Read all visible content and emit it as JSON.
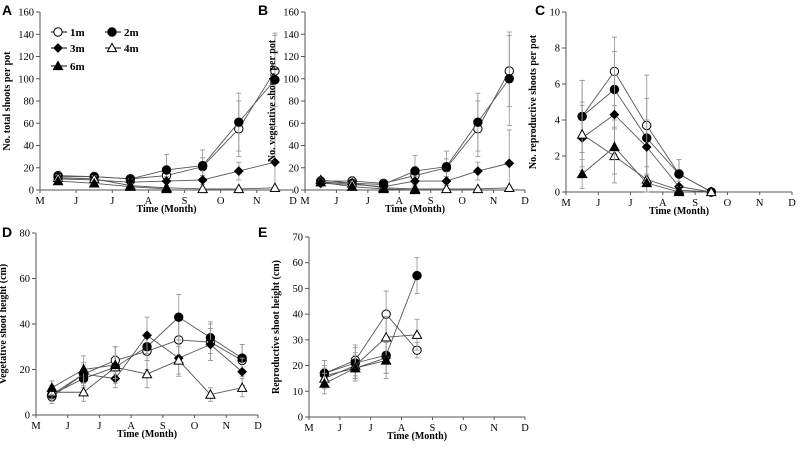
{
  "legend": {
    "entries": [
      {
        "label": "1m",
        "marker": "circle-open"
      },
      {
        "label": "2m",
        "marker": "circle-filled"
      },
      {
        "label": "3m",
        "marker": "diamond-filled"
      },
      {
        "label": "4m",
        "marker": "triangle-open"
      },
      {
        "label": "6m",
        "marker": "triangle-filled"
      }
    ]
  },
  "chart_data": [
    {
      "id": "A",
      "type": "line",
      "letter": "A",
      "ylabel": "No. total shoots per pot",
      "xlabel": "Time (Month)",
      "ylim": [
        0,
        160
      ],
      "yticks": [
        0,
        20,
        40,
        60,
        80,
        100,
        120,
        140,
        160
      ],
      "categories": [
        "M",
        "J",
        "J",
        "A",
        "S",
        "O",
        "N",
        "D"
      ],
      "series": [
        {
          "name": "1m",
          "x": [
            0.5,
            1.5,
            2.5,
            3.5,
            4.5,
            5.5,
            6.5
          ],
          "values": [
            13,
            12,
            10,
            13,
            21,
            55,
            107
          ],
          "err": [
            3,
            4,
            3,
            6,
            8,
            25,
            32
          ]
        },
        {
          "name": "2m",
          "x": [
            0.5,
            1.5,
            2.5,
            3.5,
            4.5,
            5.5,
            6.5
          ],
          "values": [
            12,
            12,
            10,
            18,
            22,
            61,
            99
          ],
          "err": [
            3,
            4,
            3,
            14,
            14,
            26,
            42
          ]
        },
        {
          "name": "3m",
          "x": [
            0.5,
            1.5,
            2.5,
            3.5,
            4.5,
            5.5,
            6.5
          ],
          "values": [
            10,
            9,
            7,
            8,
            9,
            17,
            25
          ],
          "err": [
            3,
            3,
            3,
            4,
            4,
            8,
            25
          ]
        },
        {
          "name": "4m",
          "x": [
            0.5,
            1.5,
            2.5,
            3.5,
            4.5,
            5.5,
            6.5
          ],
          "values": [
            11,
            10,
            4,
            2,
            1,
            1,
            2
          ],
          "err": [
            3,
            3,
            2,
            1,
            1,
            1,
            1
          ]
        },
        {
          "name": "6m",
          "x": [
            0.5,
            1.5,
            2.5,
            3.5
          ],
          "values": [
            8,
            6,
            3,
            1
          ],
          "err": [
            2,
            2,
            1,
            1
          ]
        }
      ]
    },
    {
      "id": "B",
      "type": "line",
      "letter": "B",
      "ylabel": "No. vegetative shoots per pot",
      "xlabel": "Time (Month)",
      "ylim": [
        0,
        160
      ],
      "yticks": [
        0,
        20,
        40,
        60,
        80,
        100,
        120,
        140,
        160
      ],
      "categories": [
        "M",
        "J",
        "J",
        "A",
        "S",
        "O",
        "N",
        "D"
      ],
      "series": [
        {
          "name": "1m",
          "x": [
            0.5,
            1.5,
            2.5,
            3.5,
            4.5,
            5.5,
            6.5
          ],
          "values": [
            8,
            8,
            6,
            13,
            20,
            55,
            107
          ],
          "err": [
            3,
            4,
            3,
            8,
            8,
            25,
            32
          ]
        },
        {
          "name": "2m",
          "x": [
            0.5,
            1.5,
            2.5,
            3.5,
            4.5,
            5.5,
            6.5
          ],
          "values": [
            7,
            6,
            5,
            17,
            21,
            61,
            100
          ],
          "err": [
            3,
            4,
            3,
            14,
            14,
            26,
            42
          ]
        },
        {
          "name": "3m",
          "x": [
            0.5,
            1.5,
            2.5,
            3.5,
            4.5,
            5.5,
            6.5
          ],
          "values": [
            6,
            5,
            3,
            8,
            8,
            17,
            24
          ],
          "err": [
            2,
            2,
            2,
            4,
            4,
            8,
            30
          ]
        },
        {
          "name": "4m",
          "x": [
            0.5,
            1.5,
            2.5,
            3.5,
            4.5,
            5.5,
            6.5
          ],
          "values": [
            9,
            6,
            2,
            1,
            1,
            1,
            2
          ],
          "err": [
            3,
            2,
            1,
            1,
            1,
            1,
            1
          ]
        },
        {
          "name": "6m",
          "x": [
            0.5,
            1.5,
            2.5,
            3.5
          ],
          "values": [
            7,
            3,
            1,
            0
          ],
          "err": [
            2,
            1,
            1,
            0
          ]
        }
      ]
    },
    {
      "id": "C",
      "type": "line",
      "letter": "C",
      "ylabel": "No. reproductive shoots per pot",
      "xlabel": "Time (Month)",
      "ylim": [
        0,
        10
      ],
      "yticks": [
        0,
        2,
        4,
        6,
        8,
        10
      ],
      "categories": [
        "M",
        "J",
        "J",
        "A",
        "S",
        "O",
        "N",
        "D"
      ],
      "series": [
        {
          "name": "1m",
          "x": [
            0.5,
            1.5,
            2.5,
            3.5,
            4.5
          ],
          "values": [
            4.2,
            6.7,
            3.7,
            1.0,
            0
          ],
          "err": [
            2.0,
            1.9,
            2.8,
            0.8,
            0.1
          ]
        },
        {
          "name": "2m",
          "x": [
            0.5,
            1.5,
            2.5,
            3.5,
            4.5
          ],
          "values": [
            4.2,
            5.7,
            3.0,
            1.0,
            0
          ],
          "err": [
            2.0,
            2.1,
            2.2,
            0.8,
            0.1
          ]
        },
        {
          "name": "3m",
          "x": [
            0.5,
            1.5,
            2.5,
            3.5,
            4.5
          ],
          "values": [
            3.0,
            4.3,
            2.5,
            0.3,
            0
          ],
          "err": [
            1.8,
            2.2,
            1.5,
            0.3,
            0.1
          ]
        },
        {
          "name": "4m",
          "x": [
            0.5,
            1.5,
            2.5,
            3.5,
            4.5
          ],
          "values": [
            3.2,
            2.0,
            0.7,
            0.1,
            0
          ],
          "err": [
            1.8,
            1.5,
            0.7,
            0.2,
            0.1
          ]
        },
        {
          "name": "6m",
          "x": [
            0.5,
            1.5,
            2.5,
            3.5
          ],
          "values": [
            1.0,
            2.5,
            0.5,
            0
          ],
          "err": [
            0.8,
            1.5,
            0.5,
            0.1
          ]
        }
      ]
    },
    {
      "id": "D",
      "type": "line",
      "letter": "D",
      "ylabel": "Vegetative shoot height (cm)",
      "xlabel": "Time (Month)",
      "ylim": [
        0,
        80
      ],
      "yticks": [
        0,
        20,
        40,
        60,
        80
      ],
      "categories": [
        "M",
        "J",
        "J",
        "A",
        "S",
        "O",
        "N",
        "D"
      ],
      "series": [
        {
          "name": "1m",
          "x": [
            0.5,
            1.5,
            2.5,
            3.5,
            4.5,
            5.5,
            6.5
          ],
          "values": [
            8,
            18,
            24,
            28,
            33,
            32,
            24
          ],
          "err": [
            3,
            5,
            6,
            8,
            10,
            8,
            7
          ]
        },
        {
          "name": "2m",
          "x": [
            0.5,
            1.5,
            2.5,
            3.5,
            4.5,
            5.5,
            6.5
          ],
          "values": [
            9,
            16,
            21,
            30,
            43,
            34,
            25
          ],
          "err": [
            3,
            4,
            5,
            6,
            10,
            7,
            6
          ]
        },
        {
          "name": "3m",
          "x": [
            0.5,
            1.5,
            2.5,
            3.5,
            4.5,
            5.5,
            6.5
          ],
          "values": [
            9,
            18,
            16,
            35,
            25,
            31,
            19
          ],
          "err": [
            3,
            4,
            4,
            8,
            8,
            7,
            6
          ]
        },
        {
          "name": "4m",
          "x": [
            0.5,
            1.5,
            2.5,
            3.5,
            4.5,
            5.5,
            6.5
          ],
          "values": [
            10,
            10,
            21,
            18,
            24,
            9,
            12
          ],
          "err": [
            3,
            4,
            5,
            6,
            6,
            3,
            4
          ]
        },
        {
          "name": "6m",
          "x": [
            0.5,
            1.5,
            2.5
          ],
          "values": [
            12,
            20,
            22
          ],
          "err": [
            3,
            6,
            8
          ]
        }
      ]
    },
    {
      "id": "E",
      "type": "line",
      "letter": "E",
      "ylabel": "Reproductive shoot height (cm)",
      "xlabel": "Time (Month)",
      "ylim": [
        0,
        70
      ],
      "yticks": [
        0,
        10,
        20,
        30,
        40,
        50,
        60,
        70
      ],
      "categories": [
        "M",
        "J",
        "J",
        "A",
        "S",
        "O",
        "N",
        "D"
      ],
      "series": [
        {
          "name": "1m",
          "x": [
            0.5,
            1.5,
            2.5,
            3.5
          ],
          "values": [
            17,
            22,
            40,
            26
          ],
          "err": [
            5,
            6,
            9,
            3
          ]
        },
        {
          "name": "2m",
          "x": [
            0.5,
            1.5,
            2.5,
            3.5
          ],
          "values": [
            17,
            21,
            24,
            55
          ],
          "err": [
            5,
            6,
            7,
            7
          ]
        },
        {
          "name": "3m",
          "x": [
            0.5,
            1.5,
            2.5
          ],
          "values": [
            16,
            19,
            23
          ],
          "err": [
            4,
            5,
            6
          ]
        },
        {
          "name": "4m",
          "x": [
            0.5,
            1.5,
            2.5,
            3.5
          ],
          "values": [
            15,
            20,
            31,
            32
          ],
          "err": [
            4,
            5,
            8,
            6
          ]
        },
        {
          "name": "6m",
          "x": [
            0.5,
            1.5,
            2.5
          ],
          "values": [
            13,
            19,
            22
          ],
          "err": [
            4,
            5,
            7
          ]
        }
      ]
    }
  ]
}
